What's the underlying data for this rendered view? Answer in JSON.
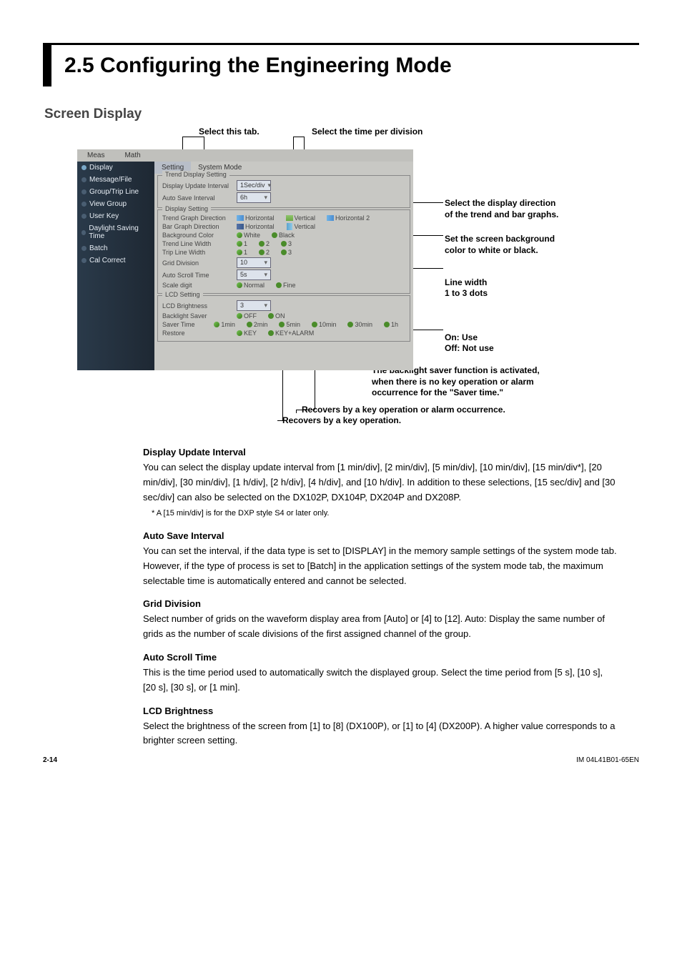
{
  "title": "2.5    Configuring the Engineering Mode",
  "subtitle": "Screen Display",
  "callouts": {
    "selectTab": "Select this tab.",
    "selectTime": "Select the time per division",
    "direction": "Select the display direction of the trend and bar graphs.",
    "bg": "Set the screen background color to white or black.",
    "lineWidth": "Line width\n1 to 3 dots",
    "onOff": "On: Use\nOff: Not use",
    "saverFunc": "The backlight saver function is activated, when there is no key operation or alarm occurrence for the \"Saver time.\"",
    "recoverAlarm": "Recovers by a key operation or alarm occurrence.",
    "recoverKey": "Recovers by a key operation."
  },
  "win": {
    "menubar": [
      "Meas",
      "Math"
    ],
    "sidebar": [
      {
        "label": "Display",
        "on": true
      },
      {
        "label": "Message/File",
        "on": false
      },
      {
        "label": "Group/Trip Line",
        "on": false
      },
      {
        "label": "View Group",
        "on": false
      },
      {
        "label": "User Key",
        "on": false
      },
      {
        "label": "Daylight Saving Time",
        "on": false
      },
      {
        "label": "Batch",
        "on": false
      },
      {
        "label": "Cal Correct",
        "on": false
      }
    ],
    "tabs": [
      {
        "label": "Setting",
        "active": true
      },
      {
        "label": "System Mode",
        "active": false
      }
    ],
    "fs1": {
      "legend": "Trend Display Setting",
      "rows": [
        {
          "label": "Display Update Interval",
          "select": "1Sec/div"
        },
        {
          "label": "Auto Save Interval",
          "select": "6h"
        }
      ]
    },
    "fs2": {
      "legend": "Display Setting",
      "rows": [
        {
          "label": "Trend Graph Direction",
          "opts": [
            "Horizontal",
            "Vertical",
            "Horizontal 2"
          ],
          "icons": [
            "hz",
            "vt",
            "h2"
          ]
        },
        {
          "label": "Bar Graph Direction",
          "opts": [
            "Horizontal",
            "Vertical"
          ],
          "icons": [
            "bh",
            "bv"
          ]
        },
        {
          "label": "Background Color",
          "opts": [
            "White",
            "Black"
          ]
        },
        {
          "label": "Trend Line Width",
          "opts": [
            "1",
            "2",
            "3"
          ]
        },
        {
          "label": "Trip Line Width",
          "opts": [
            "1",
            "2",
            "3"
          ]
        },
        {
          "label": "Grid Division",
          "select": "10"
        },
        {
          "label": "Auto Scroll Time",
          "select": "5s"
        },
        {
          "label": "Scale digit",
          "opts": [
            "Normal",
            "Fine"
          ]
        }
      ]
    },
    "fs3": {
      "legend": "LCD Setting",
      "rows": [
        {
          "label": "LCD Brightness",
          "select": "3"
        },
        {
          "label": "Backlight Saver",
          "opts": [
            "OFF",
            "ON"
          ]
        },
        {
          "label": "Saver Time",
          "opts": [
            "1min",
            "2min",
            "5min",
            "10min",
            "30min",
            "1h"
          ]
        },
        {
          "label": "Restore",
          "opts": [
            "KEY",
            "KEY+ALARM"
          ]
        }
      ]
    }
  },
  "body": {
    "h1": "Display Update Interval",
    "p1": "You can select the display update interval from [1 min/div], [2 min/div], [5 min/div], [10 min/div], [15 min/div*], [20 min/div], [30 min/div], [1 h/div], [2 h/div], [4 h/div], and [10 h/div]. In addition to these selections, [15 sec/div] and [30 sec/div] can also be selected on the DX102P, DX104P, DX204P and DX208P.",
    "n1": "*   A [15 min/div] is for the DXP style S4 or later only.",
    "h2": "Auto Save Interval",
    "p2": "You can set the interval, if the data type is set to [DISPLAY] in the memory sample settings of the system mode tab. However, if the type of process is set to [Batch] in the application settings of the system mode tab, the maximum selectable time is automatically entered and cannot be selected.",
    "h3": "Grid Division",
    "p3": "Select number of grids on the waveform display area from [Auto] or [4] to [12]. Auto: Display the same number of grids as the number of scale divisions of the first assigned channel of the group.",
    "h4": "Auto Scroll Time",
    "p4": "This is the time period used to automatically switch the displayed group. Select the time period from [5 s], [10 s], [20 s], [30 s], or [1 min].",
    "h5": "LCD Brightness",
    "p5": "Select the brightness of the screen from [1] to [8] (DX100P), or [1] to [4] (DX200P). A higher value corresponds to a brighter screen setting."
  },
  "footer": {
    "left": "2-14",
    "right": "IM 04L41B01-65EN"
  }
}
